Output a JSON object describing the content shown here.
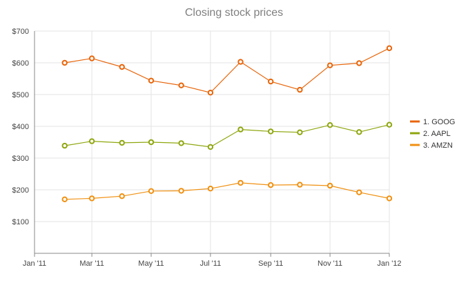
{
  "chart_data": {
    "type": "line",
    "title": "Closing stock prices",
    "xlabel": "",
    "ylabel": "",
    "x_ticks": [
      "Jan '11",
      "Mar '11",
      "May '11",
      "Jul '11",
      "Sep '11",
      "Nov '11",
      "Jan '12"
    ],
    "x_tick_values": [
      "2011-01-01",
      "2011-03-01",
      "2011-05-01",
      "2011-07-01",
      "2011-09-01",
      "2011-11-01",
      "2012-01-01"
    ],
    "xlim": [
      "2011-01-01",
      "2012-01-01"
    ],
    "y_ticks": [
      "$100",
      "$200",
      "$300",
      "$400",
      "$500",
      "$600",
      "$700"
    ],
    "y_tick_values": [
      100,
      200,
      300,
      400,
      500,
      600,
      700
    ],
    "ylim": [
      0,
      700
    ],
    "grid": true,
    "legend_position": "right",
    "x": [
      "2011-02-01",
      "2011-03-01",
      "2011-04-01",
      "2011-05-01",
      "2011-06-01",
      "2011-07-01",
      "2011-08-01",
      "2011-09-01",
      "2011-10-01",
      "2011-11-01",
      "2011-12-01",
      "2012-01-01"
    ],
    "series": [
      {
        "name": "1. GOOG",
        "color": "#e8650a",
        "values": [
          600,
          614,
          587,
          544,
          529,
          506,
          603,
          541,
          515,
          592,
          599,
          646
        ]
      },
      {
        "name": "2. AAPL",
        "color": "#8fa60e",
        "values": [
          339,
          353,
          348,
          350,
          347,
          335,
          390,
          384,
          381,
          404,
          382,
          405
        ]
      },
      {
        "name": "3. AMZN",
        "color": "#f09010",
        "values": [
          170,
          173,
          180,
          196,
          197,
          204,
          222,
          215,
          216,
          213,
          192,
          173
        ]
      }
    ]
  }
}
